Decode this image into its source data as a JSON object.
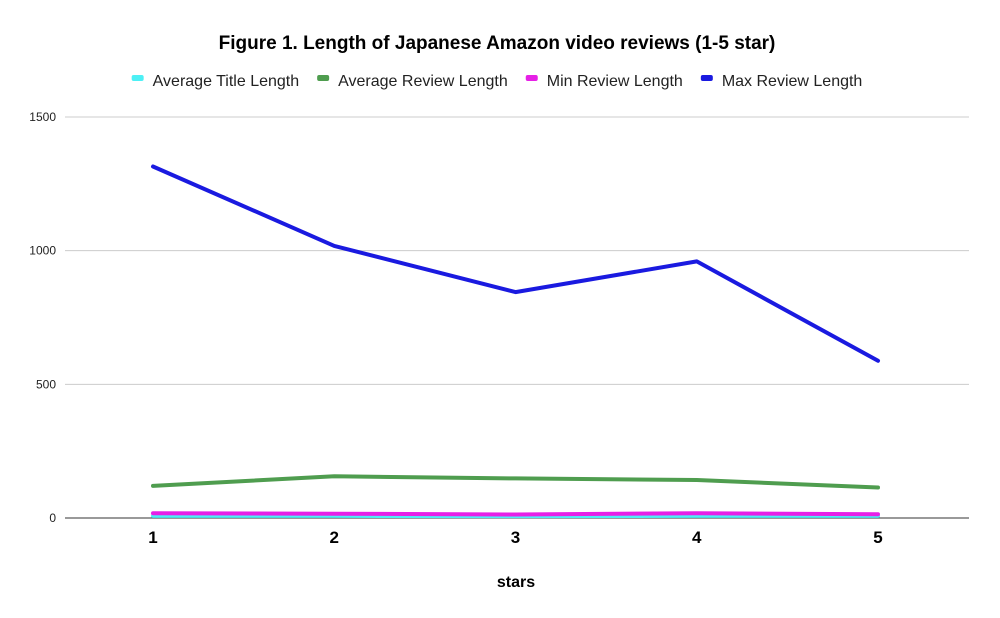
{
  "chart_data": {
    "type": "line",
    "title": "Figure 1. Length of Japanese Amazon video reviews (1-5 star)",
    "xlabel": "stars",
    "ylabel": "",
    "categories": [
      "1",
      "2",
      "3",
      "4",
      "5"
    ],
    "ylim": [
      0,
      1500
    ],
    "yticks": [
      "0",
      "500",
      "1000",
      "1500"
    ],
    "grid": true,
    "legend_position": "top",
    "series": [
      {
        "name": "Average Title Length",
        "color": "#4df0f5",
        "values": [
          8,
          8,
          7,
          8,
          8
        ]
      },
      {
        "name": "Average Review Length",
        "color": "#4f9d4f",
        "values": [
          120,
          156,
          148,
          142,
          114
        ]
      },
      {
        "name": "Min Review Length",
        "color": "#e620e6",
        "values": [
          18,
          16,
          13,
          18,
          14
        ]
      },
      {
        "name": "Max Review Length",
        "color": "#1a1ae0",
        "values": [
          1315,
          1018,
          845,
          960,
          588
        ]
      }
    ]
  }
}
